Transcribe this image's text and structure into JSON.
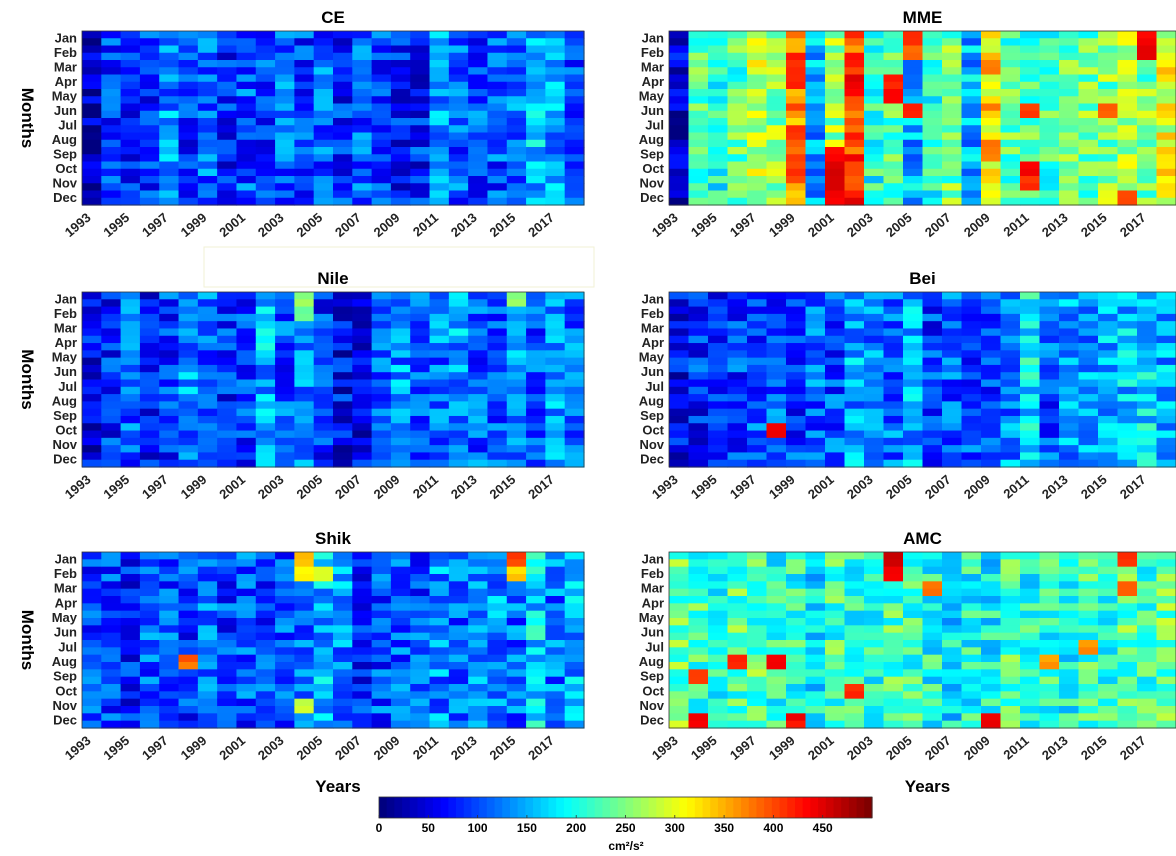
{
  "figure": {
    "colorbar": {
      "ticks": [
        "0",
        "50",
        "100",
        "150",
        "200",
        "250",
        "300",
        "350",
        "400",
        "450"
      ],
      "unit": "cm²/s²",
      "range": [
        0,
        500
      ],
      "colormap": "jet"
    }
  },
  "chart_data": [
    {
      "type": "heatmap",
      "title": "CE",
      "xlabel": "",
      "ylabel": "Months",
      "x": [
        "1993",
        "1995",
        "1997",
        "1999",
        "2001",
        "2003",
        "2005",
        "2007",
        "2009",
        "2011",
        "2013",
        "2015",
        "2017"
      ],
      "y": [
        "Jan",
        "Feb",
        "Mar",
        "Apr",
        "May",
        "Jun",
        "Jul",
        "Aug",
        "Sep",
        "Oct",
        "Nov",
        "Dec"
      ],
      "values_range": [
        0,
        500
      ],
      "level_by_year": [
        20,
        95,
        80,
        90,
        130,
        85,
        110,
        80,
        100,
        90,
        110,
        95,
        110,
        80,
        100,
        95,
        70,
        75,
        130,
        110,
        100,
        100,
        120,
        160,
        140,
        110
      ],
      "notes": "predominantly low values (~50-180)"
    },
    {
      "type": "heatmap",
      "title": "MME",
      "xlabel": "",
      "ylabel": "",
      "x": [
        "1993",
        "1995",
        "1997",
        "1999",
        "2001",
        "2003",
        "2005",
        "2007",
        "2009",
        "2011",
        "2013",
        "2015",
        "2017"
      ],
      "y": [
        "Jan",
        "Feb",
        "Mar",
        "Apr",
        "May",
        "Jun",
        "Jul",
        "Aug",
        "Sep",
        "Oct",
        "Nov",
        "Dec"
      ],
      "values_range": [
        0,
        500
      ],
      "level_by_year": [
        40,
        240,
        200,
        230,
        280,
        260,
        380,
        150,
        260,
        400,
        200,
        230,
        150,
        200,
        240,
        150,
        330,
        230,
        220,
        220,
        250,
        240,
        250,
        280,
        250,
        300
      ],
      "notes": "high values in 2001 autumn, 2004-2005, 2011 and 2016-2017 (up to ~480)"
    },
    {
      "type": "heatmap",
      "title": "Nile",
      "xlabel": "",
      "ylabel": "Months",
      "x": [
        "1993",
        "1995",
        "1997",
        "1999",
        "2001",
        "2003",
        "2005",
        "2007",
        "2009",
        "2011",
        "2013",
        "2015",
        "2017"
      ],
      "y": [
        "Jan",
        "Feb",
        "Mar",
        "Apr",
        "May",
        "Jun",
        "Jul",
        "Aug",
        "Sep",
        "Oct",
        "Nov",
        "Dec"
      ],
      "values_range": [
        0,
        500
      ],
      "level_by_year": [
        60,
        80,
        110,
        70,
        90,
        130,
        110,
        80,
        90,
        150,
        100,
        130,
        90,
        60,
        60,
        110,
        130,
        100,
        120,
        140,
        110,
        100,
        130,
        110,
        140,
        120
      ],
      "notes": "mostly 50-170, spot near 2004 Jan-Feb ~250"
    },
    {
      "type": "heatmap",
      "title": "Bei",
      "xlabel": "",
      "ylabel": "",
      "x": [
        "1993",
        "1995",
        "1997",
        "1999",
        "2001",
        "2003",
        "2005",
        "2007",
        "2009",
        "2011",
        "2013",
        "2015",
        "2017"
      ],
      "y": [
        "Jan",
        "Feb",
        "Mar",
        "Apr",
        "May",
        "Jun",
        "Jul",
        "Aug",
        "Sep",
        "Oct",
        "Nov",
        "Dec"
      ],
      "values_range": [
        0,
        500
      ],
      "level_by_year": [
        60,
        80,
        80,
        90,
        100,
        100,
        90,
        110,
        100,
        140,
        120,
        110,
        140,
        90,
        110,
        100,
        90,
        130,
        180,
        100,
        140,
        130,
        150,
        160,
        170,
        150
      ],
      "notes": "mostly 60-200, single hot cell in 1997 Oct (~420)"
    },
    {
      "type": "heatmap",
      "title": "Shik",
      "xlabel": "Years",
      "ylabel": "Months",
      "x": [
        "1993",
        "1995",
        "1997",
        "1999",
        "2001",
        "2003",
        "2005",
        "2007",
        "2009",
        "2011",
        "2013",
        "2015",
        "2017"
      ],
      "y": [
        "Jan",
        "Feb",
        "Mar",
        "Apr",
        "May",
        "Jun",
        "Jul",
        "Aug",
        "Sep",
        "Oct",
        "Nov",
        "Dec"
      ],
      "values_range": [
        0,
        500
      ],
      "level_by_year": [
        90,
        100,
        80,
        110,
        100,
        90,
        110,
        90,
        100,
        100,
        100,
        120,
        150,
        130,
        80,
        100,
        110,
        100,
        130,
        110,
        140,
        130,
        110,
        170,
        120,
        150
      ],
      "notes": "mostly 50-180, hot cells near 2004 Jan, 2005 Feb, 1997 Aug, 2015 Jan (~350-450)"
    },
    {
      "type": "heatmap",
      "title": "AMC",
      "xlabel": "Years",
      "ylabel": "",
      "x": [
        "1993",
        "1995",
        "1997",
        "1999",
        "2001",
        "2003",
        "2005",
        "2007",
        "2009",
        "2011",
        "2013",
        "2015",
        "2017"
      ],
      "y": [
        "Jan",
        "Feb",
        "Mar",
        "Apr",
        "May",
        "Jun",
        "Jul",
        "Aug",
        "Sep",
        "Oct",
        "Nov",
        "Dec"
      ],
      "values_range": [
        0,
        500
      ],
      "level_by_year": [
        240,
        220,
        190,
        230,
        230,
        200,
        210,
        180,
        220,
        210,
        210,
        220,
        210,
        200,
        180,
        200,
        190,
        220,
        200,
        210,
        200,
        220,
        210,
        230,
        220,
        240
      ],
      "notes": "highly variable 100-480, many hot cells across years"
    }
  ]
}
